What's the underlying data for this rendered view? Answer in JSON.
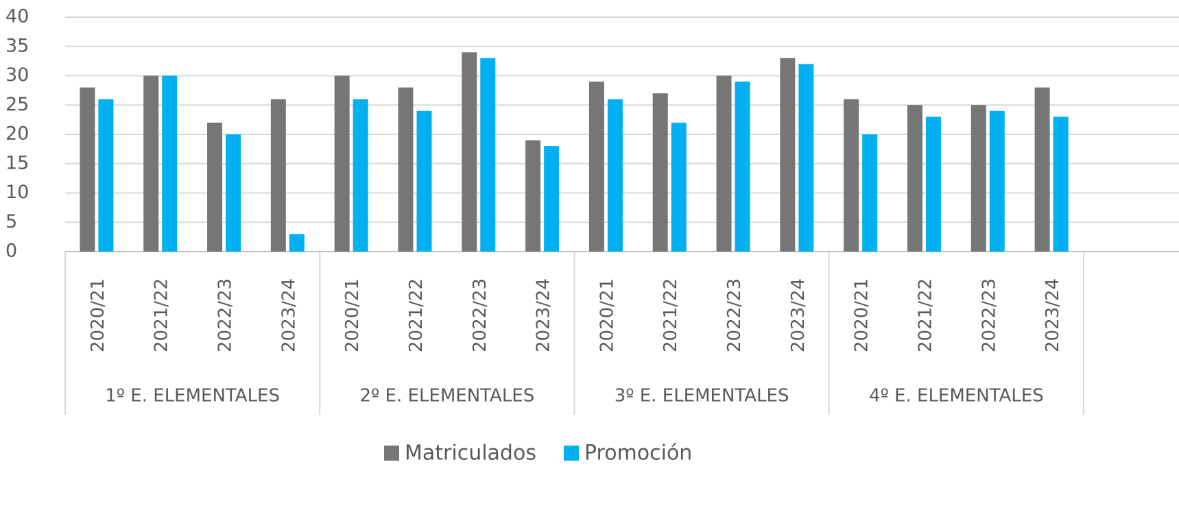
{
  "chart_data": {
    "type": "bar",
    "groups": [
      "1º E. ELEMENTALES",
      "2º E. ELEMENTALES",
      "3º E. ELEMENTALES",
      "4º E. ELEMENTALES"
    ],
    "categories": [
      "2020/21",
      "2021/22",
      "2022/23",
      "2023/24",
      "2020/21",
      "2021/22",
      "2022/23",
      "2023/24",
      "2020/21",
      "2021/22",
      "2022/23",
      "2023/24",
      "2020/21",
      "2021/22",
      "2022/23",
      "2023/24"
    ],
    "series": [
      {
        "name": "Matriculados",
        "color": "#767676",
        "values": [
          28,
          30,
          22,
          26,
          30,
          28,
          34,
          19,
          29,
          27,
          30,
          33,
          26,
          25,
          25,
          28
        ]
      },
      {
        "name": "Promoción",
        "color": "#00b0f0",
        "values": [
          26,
          30,
          20,
          3,
          26,
          24,
          33,
          18,
          26,
          22,
          29,
          32,
          20,
          23,
          24,
          23
        ]
      }
    ],
    "ylim": [
      0,
      40
    ],
    "yticks": [
      0,
      5,
      10,
      15,
      20,
      25,
      30,
      35,
      40
    ],
    "grid": true,
    "legend": "bottom"
  }
}
